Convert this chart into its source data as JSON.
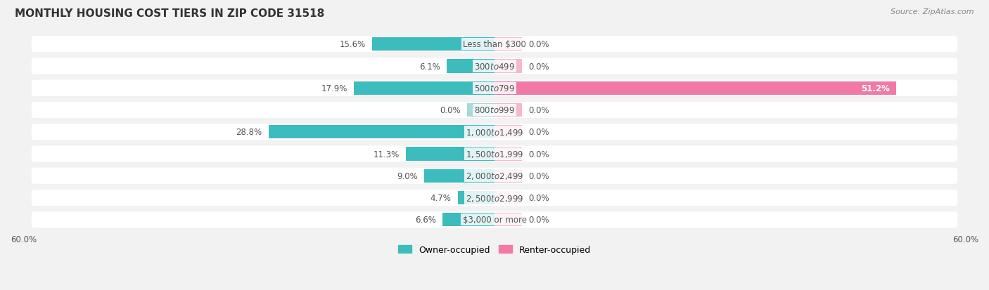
{
  "title": "MONTHLY HOUSING COST TIERS IN ZIP CODE 31518",
  "source": "Source: ZipAtlas.com",
  "categories": [
    "Less than $300",
    "$300 to $499",
    "$500 to $799",
    "$800 to $999",
    "$1,000 to $1,499",
    "$1,500 to $1,999",
    "$2,000 to $2,499",
    "$2,500 to $2,999",
    "$3,000 or more"
  ],
  "owner_values": [
    15.6,
    6.1,
    17.9,
    0.0,
    28.8,
    11.3,
    9.0,
    4.7,
    6.6
  ],
  "renter_values": [
    0.0,
    0.0,
    51.2,
    0.0,
    0.0,
    0.0,
    0.0,
    0.0,
    0.0
  ],
  "owner_color": "#3dbcbe",
  "owner_color_zero": "#a8d8da",
  "renter_color": "#f07aa5",
  "renter_color_zero": "#f5b8ce",
  "axis_limit": 60.0,
  "zero_stub": 3.5,
  "background_color": "#f2f2f2",
  "row_bg_color": "#ffffff",
  "title_fontsize": 11,
  "source_fontsize": 8,
  "label_fontsize": 8.5,
  "tick_fontsize": 8.5,
  "legend_fontsize": 9,
  "value_fontsize": 8.5
}
